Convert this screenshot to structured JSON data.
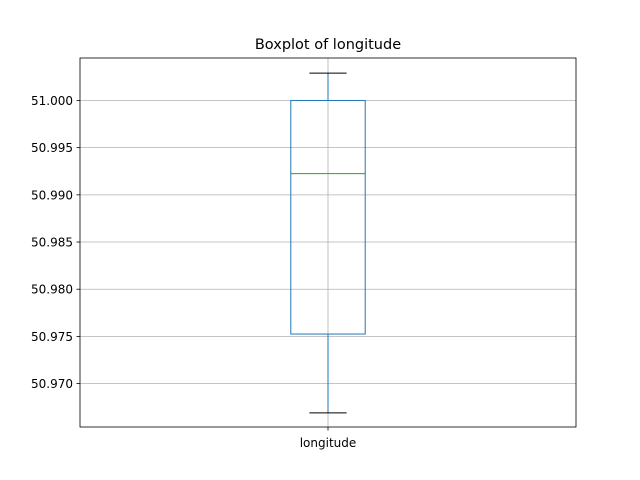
{
  "chart_data": {
    "type": "boxplot",
    "title": "Boxplot of longitude",
    "xlabel": "",
    "ylabel": "",
    "categories": [
      "longitude"
    ],
    "boxes": [
      {
        "label": "longitude",
        "whisker_low": 50.9669,
        "q1": 50.97525,
        "median": 50.99225,
        "q3": 51.0,
        "whisker_high": 51.0029
      }
    ],
    "ylim": [
      50.9654,
      51.0045
    ],
    "yticks": [
      50.97,
      50.975,
      50.98,
      50.985,
      50.99,
      50.995,
      51.0
    ],
    "ytick_labels": [
      "50.970",
      "50.975",
      "50.980",
      "50.985",
      "50.990",
      "50.995",
      "51.000"
    ],
    "grid": true,
    "colors": {
      "box": "#1f77b4",
      "median": "#2ca02c",
      "caps": "#000000",
      "grid": "#b0b0b0"
    }
  }
}
